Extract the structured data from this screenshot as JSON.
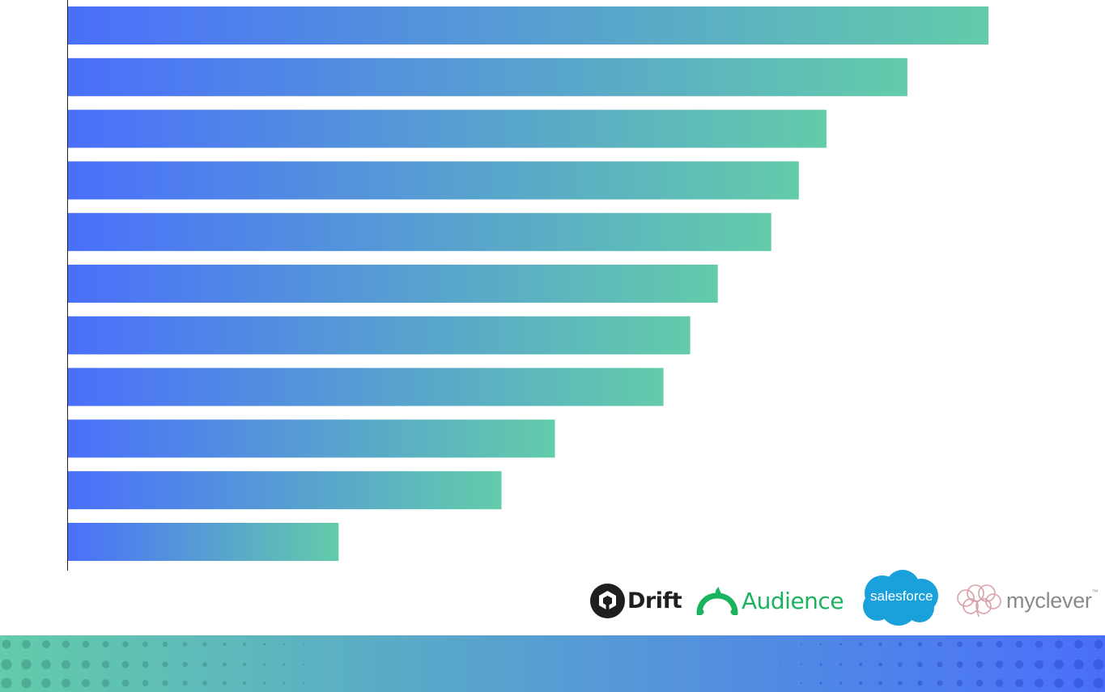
{
  "chart_data": {
    "type": "bar",
    "orientation": "horizontal",
    "values": [
      100,
      91.2,
      82.4,
      79.4,
      76.4,
      70.6,
      67.6,
      64.7,
      52.9,
      47.1,
      29.4
    ],
    "xlim": [
      0,
      100
    ],
    "grid": false,
    "colors": {
      "bar_start": "#4a6ffb",
      "bar_end": "#63ccaa"
    }
  },
  "logos": {
    "drift": {
      "name": "Drift",
      "icon": "drift-icon"
    },
    "audience": {
      "name": "Audience",
      "icon": "semrush-fire-icon",
      "color": "#1bb35f"
    },
    "salesforce": {
      "name": "salesforce",
      "icon": "cloud-icon",
      "color": "#1aa0db"
    },
    "myclever": {
      "name": "myclever",
      "mark": "™",
      "icon": "brain-icon",
      "color": "#d9a0a8"
    }
  },
  "footer": {
    "gradient_start": "#63ccaa",
    "gradient_end": "#4a6ffb",
    "dot_pattern": "halftone-dots"
  }
}
